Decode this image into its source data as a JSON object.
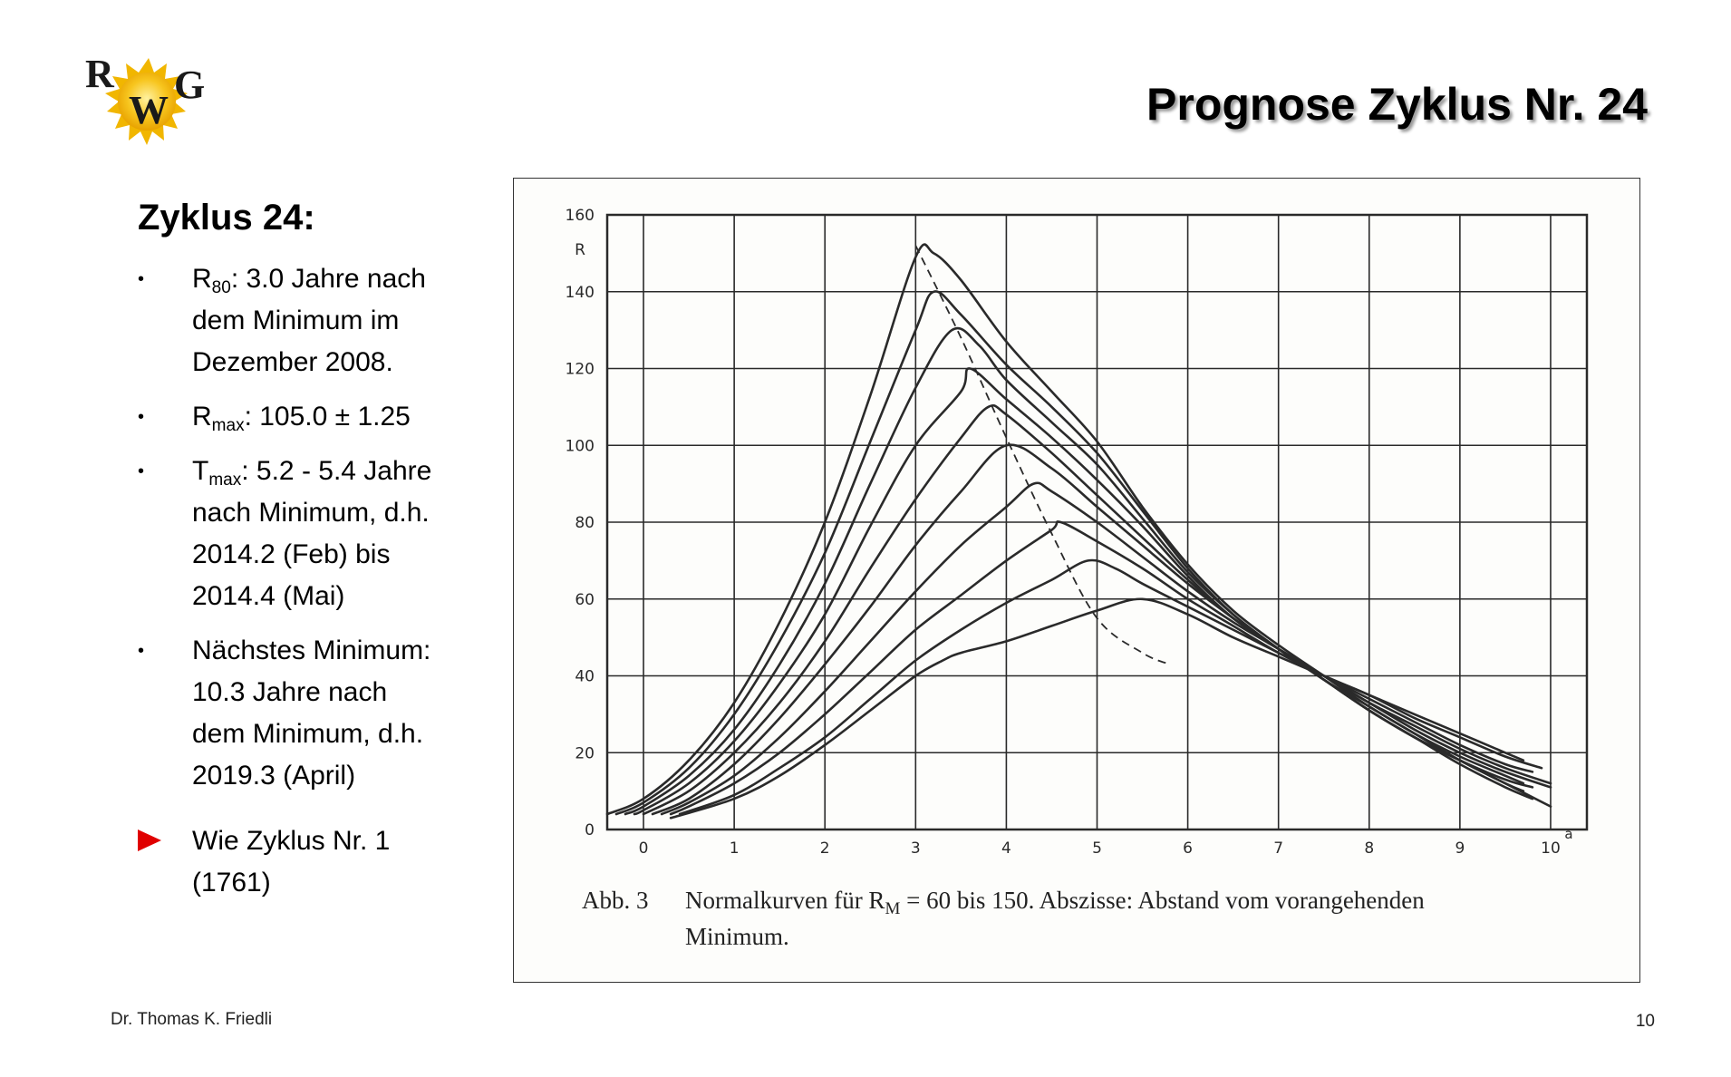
{
  "logo": {
    "letters": [
      "R",
      "W",
      "G"
    ]
  },
  "header": {
    "title": "Prognose Zyklus Nr. 24"
  },
  "left": {
    "heading": "Zyklus 24:",
    "bullets": [
      {
        "lines": [
          [
            {
              "t": "R"
            },
            {
              "t": "80",
              "sub": true
            },
            {
              "t": ": 3.0 Jahre nach"
            }
          ],
          [
            {
              "t": "dem Minimum im"
            }
          ],
          [
            {
              "t": "Dezember 2008."
            }
          ]
        ]
      },
      {
        "lines": [
          [
            {
              "t": "R"
            },
            {
              "t": "max",
              "sub": true
            },
            {
              "t": ": 105.0 ± 1.25"
            }
          ]
        ]
      },
      {
        "lines": [
          [
            {
              "t": "T"
            },
            {
              "t": "max",
              "sub": true
            },
            {
              "t": ": 5.2 - 5.4 Jahre"
            }
          ],
          [
            {
              "t": "nach Minimum, d.h."
            }
          ],
          [
            {
              "t": "2014.2 (Feb) bis"
            }
          ],
          [
            {
              "t": "2014.4 (Mai)"
            }
          ]
        ]
      },
      {
        "lines": [
          [
            {
              "t": "Nächstes Minimum:"
            }
          ],
          [
            {
              "t": "10.3 Jahre nach"
            }
          ],
          [
            {
              "t": "dem Minimum, d.h."
            }
          ],
          [
            {
              "t": "2019.3 (April)"
            }
          ]
        ]
      },
      {
        "marker": "arrow",
        "lines": [
          [
            {
              "t": "Wie Zyklus Nr. 1"
            }
          ],
          [
            {
              "t": "(1761)"
            }
          ]
        ]
      }
    ]
  },
  "chart_data": {
    "type": "line",
    "ylabel": "R",
    "xunit": "a",
    "xlim": [
      -0.4,
      10.4
    ],
    "ylim": [
      0,
      160
    ],
    "x_ticks": [
      0,
      1,
      2,
      3,
      4,
      5,
      6,
      7,
      8,
      9,
      10
    ],
    "y_ticks": [
      0,
      20,
      40,
      60,
      80,
      100,
      120,
      140,
      160
    ],
    "grid": true,
    "color": "#2a2a2a",
    "series": [
      {
        "points": [
          [
            -0.4,
            4
          ],
          [
            0.0,
            8
          ],
          [
            0.5,
            18
          ],
          [
            1.0,
            33
          ],
          [
            1.5,
            54
          ],
          [
            2.0,
            80
          ],
          [
            2.5,
            113
          ],
          [
            3.0,
            149
          ],
          [
            3.2,
            150
          ],
          [
            3.5,
            143
          ],
          [
            4.0,
            127
          ],
          [
            4.5,
            114
          ],
          [
            5.0,
            101
          ],
          [
            5.5,
            84
          ],
          [
            6.0,
            69
          ],
          [
            6.5,
            57
          ],
          [
            7.0,
            48
          ],
          [
            7.5,
            40
          ],
          [
            8.0,
            32
          ],
          [
            8.5,
            25
          ],
          [
            9.0,
            18
          ],
          [
            9.5,
            12
          ],
          [
            10.0,
            6
          ]
        ]
      },
      {
        "points": [
          [
            -0.3,
            4
          ],
          [
            0.0,
            7
          ],
          [
            0.5,
            16
          ],
          [
            1.0,
            30
          ],
          [
            1.5,
            49
          ],
          [
            2.0,
            72
          ],
          [
            2.5,
            101
          ],
          [
            3.0,
            130
          ],
          [
            3.2,
            140
          ],
          [
            3.5,
            134
          ],
          [
            4.0,
            121
          ],
          [
            4.5,
            110
          ],
          [
            5.0,
            98
          ],
          [
            5.5,
            83
          ],
          [
            6.0,
            68
          ],
          [
            6.5,
            56
          ],
          [
            7.0,
            47
          ],
          [
            7.5,
            39
          ],
          [
            8.0,
            31
          ],
          [
            8.5,
            24
          ],
          [
            9.0,
            17
          ],
          [
            9.5,
            11
          ],
          [
            9.8,
            8
          ]
        ]
      },
      {
        "points": [
          [
            -0.2,
            4
          ],
          [
            0.0,
            6
          ],
          [
            0.5,
            14
          ],
          [
            1.0,
            26
          ],
          [
            1.5,
            43
          ],
          [
            2.0,
            64
          ],
          [
            2.5,
            90
          ],
          [
            3.0,
            115
          ],
          [
            3.4,
            130
          ],
          [
            3.7,
            126
          ],
          [
            4.0,
            117
          ],
          [
            4.5,
            106
          ],
          [
            5.0,
            95
          ],
          [
            5.5,
            81
          ],
          [
            6.0,
            67
          ],
          [
            6.5,
            56
          ],
          [
            7.0,
            47
          ],
          [
            7.5,
            39
          ],
          [
            8.0,
            31
          ],
          [
            8.5,
            24
          ],
          [
            9.0,
            18
          ],
          [
            9.5,
            12
          ],
          [
            9.7,
            10
          ]
        ]
      },
      {
        "points": [
          [
            -0.1,
            4
          ],
          [
            0.0,
            5
          ],
          [
            0.5,
            12
          ],
          [
            1.0,
            23
          ],
          [
            1.5,
            38
          ],
          [
            2.0,
            56
          ],
          [
            2.5,
            79
          ],
          [
            3.0,
            100
          ],
          [
            3.5,
            114
          ],
          [
            3.6,
            120
          ],
          [
            4.0,
            112
          ],
          [
            4.5,
            102
          ],
          [
            5.0,
            91
          ],
          [
            5.5,
            79
          ],
          [
            6.0,
            66
          ],
          [
            6.5,
            55
          ],
          [
            7.0,
            47
          ],
          [
            7.5,
            39
          ],
          [
            8.0,
            31
          ],
          [
            8.5,
            24
          ],
          [
            9.0,
            18
          ],
          [
            9.5,
            13
          ],
          [
            9.8,
            11
          ]
        ]
      },
      {
        "points": [
          [
            0.0,
            4
          ],
          [
            0.5,
            10
          ],
          [
            1.0,
            20
          ],
          [
            1.5,
            33
          ],
          [
            2.0,
            49
          ],
          [
            2.5,
            68
          ],
          [
            3.0,
            86
          ],
          [
            3.5,
            102
          ],
          [
            3.8,
            110
          ],
          [
            4.0,
            108
          ],
          [
            4.5,
            98
          ],
          [
            5.0,
            87
          ],
          [
            5.5,
            76
          ],
          [
            6.0,
            65
          ],
          [
            6.5,
            55
          ],
          [
            7.0,
            47
          ],
          [
            7.5,
            39
          ],
          [
            8.0,
            32
          ],
          [
            8.5,
            25
          ],
          [
            9.0,
            19
          ],
          [
            9.5,
            14
          ],
          [
            9.7,
            12
          ]
        ]
      },
      {
        "points": [
          [
            0.1,
            4
          ],
          [
            0.5,
            8
          ],
          [
            1.0,
            17
          ],
          [
            1.5,
            29
          ],
          [
            2.0,
            43
          ],
          [
            2.5,
            58
          ],
          [
            3.0,
            74
          ],
          [
            3.5,
            88
          ],
          [
            4.0,
            100
          ],
          [
            4.5,
            94
          ],
          [
            5.0,
            84
          ],
          [
            5.5,
            74
          ],
          [
            6.0,
            64
          ],
          [
            6.5,
            55
          ],
          [
            7.0,
            47
          ],
          [
            7.5,
            40
          ],
          [
            8.0,
            33
          ],
          [
            8.5,
            26
          ],
          [
            9.0,
            20
          ],
          [
            9.5,
            15
          ],
          [
            10.0,
            11
          ]
        ]
      },
      {
        "points": [
          [
            0.2,
            4
          ],
          [
            0.5,
            7
          ],
          [
            1.0,
            14
          ],
          [
            1.5,
            24
          ],
          [
            2.0,
            36
          ],
          [
            2.5,
            49
          ],
          [
            3.0,
            62
          ],
          [
            3.5,
            74
          ],
          [
            4.0,
            84
          ],
          [
            4.3,
            90
          ],
          [
            4.5,
            88
          ],
          [
            5.0,
            80
          ],
          [
            5.5,
            71
          ],
          [
            6.0,
            62
          ],
          [
            6.5,
            54
          ],
          [
            7.0,
            47
          ],
          [
            7.5,
            40
          ],
          [
            8.0,
            33
          ],
          [
            8.5,
            27
          ],
          [
            9.0,
            21
          ],
          [
            9.5,
            16
          ],
          [
            10.0,
            12
          ]
        ]
      },
      {
        "points": [
          [
            0.3,
            4
          ],
          [
            0.5,
            6
          ],
          [
            1.0,
            12
          ],
          [
            1.5,
            20
          ],
          [
            2.0,
            30
          ],
          [
            2.5,
            41
          ],
          [
            3.0,
            52
          ],
          [
            3.5,
            61
          ],
          [
            4.0,
            70
          ],
          [
            4.5,
            78
          ],
          [
            4.6,
            80
          ],
          [
            5.0,
            75
          ],
          [
            5.5,
            68
          ],
          [
            6.0,
            60
          ],
          [
            6.5,
            53
          ],
          [
            7.0,
            46
          ],
          [
            7.5,
            40
          ],
          [
            8.0,
            34
          ],
          [
            8.5,
            28
          ],
          [
            9.0,
            22
          ],
          [
            9.5,
            17
          ],
          [
            9.8,
            15
          ]
        ]
      },
      {
        "points": [
          [
            0.4,
            4
          ],
          [
            1.0,
            9
          ],
          [
            1.5,
            16
          ],
          [
            2.0,
            24
          ],
          [
            2.5,
            34
          ],
          [
            3.0,
            44
          ],
          [
            3.5,
            52
          ],
          [
            4.0,
            59
          ],
          [
            4.5,
            65
          ],
          [
            4.9,
            70
          ],
          [
            5.2,
            68
          ],
          [
            5.5,
            64
          ],
          [
            6.0,
            58
          ],
          [
            6.5,
            52
          ],
          [
            7.0,
            46
          ],
          [
            7.5,
            40
          ],
          [
            8.0,
            35
          ],
          [
            8.5,
            29
          ],
          [
            9.0,
            24
          ],
          [
            9.5,
            19
          ],
          [
            9.9,
            16
          ]
        ]
      },
      {
        "points": [
          [
            0.3,
            3
          ],
          [
            1.0,
            8
          ],
          [
            1.5,
            14
          ],
          [
            2.0,
            22
          ],
          [
            2.5,
            31
          ],
          [
            3.0,
            40
          ],
          [
            3.3,
            44
          ],
          [
            3.5,
            46
          ],
          [
            4.0,
            49
          ],
          [
            4.5,
            53
          ],
          [
            5.0,
            57
          ],
          [
            5.5,
            60
          ],
          [
            6.0,
            56
          ],
          [
            6.5,
            50
          ],
          [
            7.0,
            45
          ],
          [
            7.5,
            40
          ],
          [
            8.0,
            35
          ],
          [
            8.5,
            30
          ],
          [
            9.0,
            25
          ],
          [
            9.5,
            20
          ],
          [
            9.7,
            18
          ]
        ]
      }
    ],
    "peak_trend": {
      "style": "dashed",
      "points": [
        [
          3.0,
          152
        ],
        [
          3.5,
          128
        ],
        [
          4.0,
          102
        ],
        [
          4.5,
          77
        ],
        [
          5.0,
          55
        ],
        [
          5.5,
          46
        ],
        [
          5.8,
          43
        ]
      ]
    }
  },
  "caption": {
    "label": "Abb. 3",
    "line1_text": "Normalkurven für R",
    "line1_sub": "M",
    "line1_rest": " = 60 bis 150. Abszisse: Abstand vom vorangehenden",
    "line2": "Minimum."
  },
  "footer": {
    "author": "Dr. Thomas K. Friedli",
    "page": "10"
  }
}
